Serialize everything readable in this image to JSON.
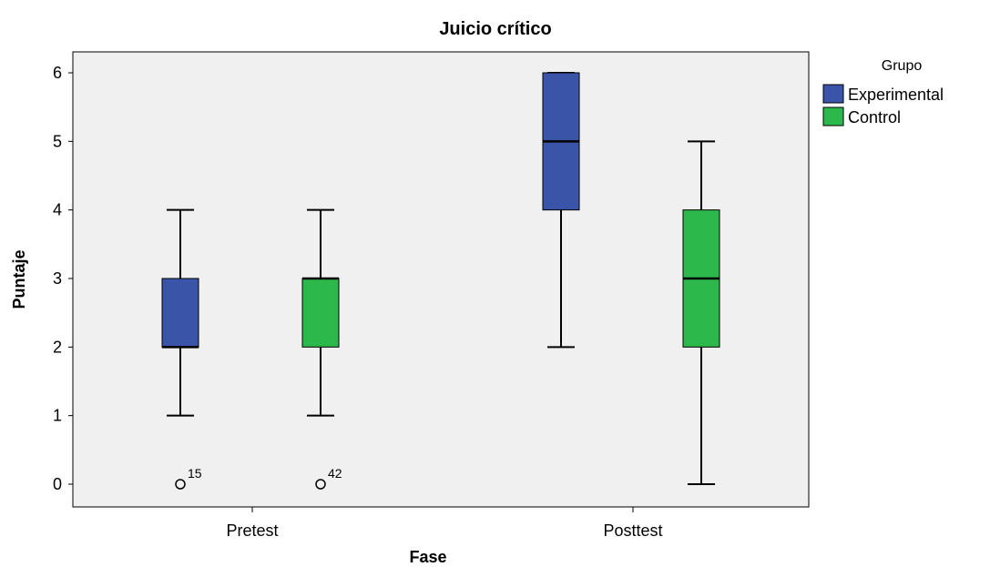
{
  "chart_data": {
    "type": "boxplot",
    "title": "Juicio crítico",
    "xlabel": "Fase",
    "ylabel": "Puntaje",
    "categories": [
      "Pretest",
      "Posttest"
    ],
    "ylim": [
      0,
      6
    ],
    "y_ticks": [
      0,
      1,
      2,
      3,
      4,
      5,
      6
    ],
    "y_tick_labels": [
      "0",
      "1",
      "2",
      "3",
      "4",
      "5",
      "6"
    ],
    "legend": {
      "title": "Grupo",
      "position": "right"
    },
    "series": [
      {
        "name": "Experimental",
        "color": "#3a55a8",
        "boxes": [
          {
            "category": "Pretest",
            "whisker_low": 1,
            "q1": 2,
            "median": 2,
            "q3": 3,
            "whisker_high": 4,
            "outliers": [
              {
                "value": 0,
                "label": "15"
              }
            ]
          },
          {
            "category": "Posttest",
            "whisker_low": 2,
            "q1": 4,
            "median": 5,
            "q3": 6,
            "whisker_high": 6,
            "outliers": []
          }
        ]
      },
      {
        "name": "Control",
        "color": "#2db84b",
        "boxes": [
          {
            "category": "Pretest",
            "whisker_low": 1,
            "q1": 2,
            "median": 3,
            "q3": 3,
            "whisker_high": 4,
            "outliers": [
              {
                "value": 0,
                "label": "42"
              }
            ]
          },
          {
            "category": "Posttest",
            "whisker_low": 0,
            "q1": 2,
            "median": 3,
            "q3": 4,
            "whisker_high": 5,
            "outliers": []
          }
        ]
      }
    ],
    "background_color": "#f0f0f0",
    "grid": false
  }
}
